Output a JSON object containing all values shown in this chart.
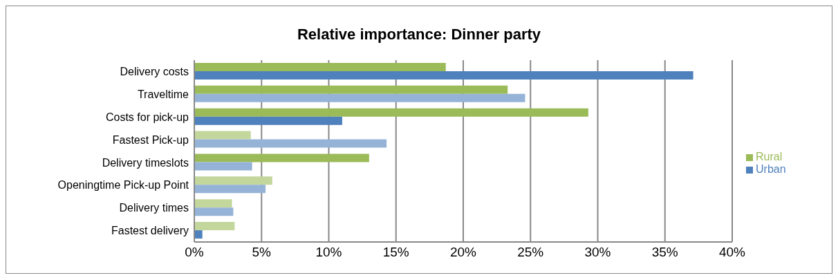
{
  "chart_data": {
    "type": "bar",
    "orientation": "horizontal",
    "title": "Relative importance: Dinner party",
    "categories": [
      "Delivery costs",
      "Traveltime ",
      "Costs for pick-up",
      "Fastest Pick-up",
      "Delivery timeslots",
      "Openingtime Pick-up Point",
      "Delivery times",
      "Fastest delivery"
    ],
    "series": [
      {
        "name": "Rural",
        "color": "#9bbb59",
        "values": [
          18.7,
          23.3,
          29.3,
          4.2,
          13.0,
          5.8,
          2.8,
          3.0
        ],
        "colors": [
          "#9bbb59",
          "#9bbb59",
          "#9bbb59",
          "#c3d69b",
          "#9bbb59",
          "#c3d69b",
          "#c3d69b",
          "#c3d69b"
        ]
      },
      {
        "name": "Urban",
        "color": "#4f81bd",
        "values": [
          37.1,
          24.6,
          11.0,
          14.3,
          4.3,
          5.3,
          2.9,
          0.6
        ],
        "colors": [
          "#4f81bd",
          "#95b3d7",
          "#4f81bd",
          "#95b3d7",
          "#95b3d7",
          "#95b3d7",
          "#95b3d7",
          "#4f81bd"
        ]
      }
    ],
    "xlim": [
      0,
      40
    ],
    "xticks": [
      {
        "value": 0,
        "label": "0%"
      },
      {
        "value": 5,
        "label": "5%"
      },
      {
        "value": 10,
        "label": "10%"
      },
      {
        "value": 15,
        "label": "15%"
      },
      {
        "value": 20,
        "label": "20%"
      },
      {
        "value": 25,
        "label": "25%"
      },
      {
        "value": 30,
        "label": "30%"
      },
      {
        "value": 35,
        "label": "35%"
      },
      {
        "value": 40,
        "label": "40%"
      }
    ],
    "grid": "x",
    "legend": "right"
  }
}
